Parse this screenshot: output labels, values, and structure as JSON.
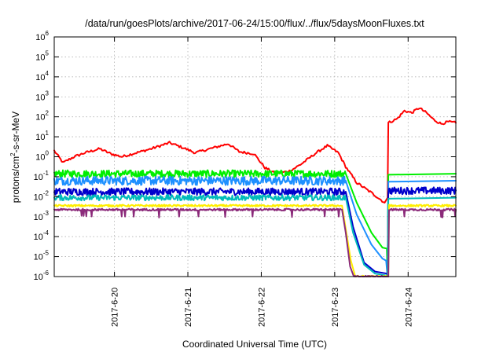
{
  "chart_data": {
    "type": "line",
    "title": "/data/run/goesPlots/archive/2017-06-24/15:00/flux/../flux/5daysMoonFluxes.txt",
    "xlabel": "Coordinated Universal Time (UTC)",
    "ylabel": {
      "pre": "protons/cm",
      "sup": "2",
      "post": "-s-sr-MeV"
    },
    "x_unit": "day of June 2017",
    "xlim": [
      19.18,
      24.65
    ],
    "ylim_log10": [
      -6,
      6
    ],
    "scale_y": "log",
    "grid": true,
    "legend": "none",
    "x_ticks": [
      {
        "x": 20,
        "label": "2017-6-20"
      },
      {
        "x": 21,
        "label": "2017-6-21"
      },
      {
        "x": 22,
        "label": "2017-6-22"
      },
      {
        "x": 23,
        "label": "2017-6-23"
      },
      {
        "x": 24,
        "label": "2017-6-24"
      }
    ],
    "y_ticks": [
      {
        "exp": -6,
        "base": "10",
        "sup": "-6"
      },
      {
        "exp": -5,
        "base": "10",
        "sup": "-5"
      },
      {
        "exp": -4,
        "base": "10",
        "sup": "-4"
      },
      {
        "exp": -3,
        "base": "10",
        "sup": "-3"
      },
      {
        "exp": -2,
        "base": "10",
        "sup": "-2"
      },
      {
        "exp": -1,
        "base": "10",
        "sup": "-1"
      },
      {
        "exp": 0,
        "base": "10",
        "sup": "0"
      },
      {
        "exp": 1,
        "base": "10",
        "sup": "1"
      },
      {
        "exp": 2,
        "base": "10",
        "sup": "2"
      },
      {
        "exp": 3,
        "base": "10",
        "sup": "3"
      },
      {
        "exp": 4,
        "base": "10",
        "sup": "4"
      },
      {
        "exp": 5,
        "base": "10",
        "sup": "5"
      },
      {
        "exp": 6,
        "base": "10",
        "sup": "6"
      }
    ],
    "series": [
      {
        "color": "#ff0000",
        "points": [
          [
            19.18,
            0.3
          ],
          [
            19.3,
            -0.3
          ],
          [
            19.45,
            0.0
          ],
          [
            19.6,
            0.2
          ],
          [
            19.8,
            0.4
          ],
          [
            19.95,
            0.15
          ],
          [
            20.1,
            0.0
          ],
          [
            20.3,
            0.2
          ],
          [
            20.5,
            0.4
          ],
          [
            20.75,
            0.7
          ],
          [
            20.9,
            0.5
          ],
          [
            21.1,
            0.2
          ],
          [
            21.3,
            0.4
          ],
          [
            21.55,
            0.65
          ],
          [
            21.7,
            0.25
          ],
          [
            21.9,
            0.15
          ],
          [
            22.05,
            -0.55
          ],
          [
            22.2,
            -0.85
          ],
          [
            22.4,
            -0.7
          ],
          [
            22.55,
            -0.35
          ],
          [
            22.75,
            0.2
          ],
          [
            22.9,
            0.55
          ],
          [
            23.05,
            0.2
          ],
          [
            23.15,
            -0.5
          ],
          [
            23.3,
            -1.3
          ],
          [
            23.5,
            -1.8
          ],
          [
            23.68,
            -2.3
          ],
          [
            23.72,
            -2.05
          ],
          [
            23.73,
            1.7
          ],
          [
            23.85,
            1.9
          ],
          [
            23.95,
            2.3
          ],
          [
            24.05,
            2.2
          ],
          [
            24.15,
            2.45
          ],
          [
            24.25,
            2.2
          ],
          [
            24.35,
            1.85
          ],
          [
            24.45,
            1.65
          ],
          [
            24.55,
            1.75
          ],
          [
            24.65,
            1.7
          ]
        ]
      },
      {
        "color": "#00ee00",
        "noise": 0.18,
        "points": [
          [
            19.18,
            -0.85
          ],
          [
            23.15,
            -0.85
          ],
          [
            23.3,
            -2.3
          ],
          [
            23.5,
            -3.8
          ],
          [
            23.65,
            -4.55
          ],
          [
            23.71,
            -4.6
          ],
          [
            23.72,
            -6
          ],
          [
            23.73,
            -0.9
          ],
          [
            24.65,
            -0.85
          ]
        ]
      },
      {
        "color": "#1e90ff",
        "noise": 0.22,
        "points": [
          [
            19.18,
            -1.2
          ],
          [
            23.15,
            -1.2
          ],
          [
            23.3,
            -2.9
          ],
          [
            23.5,
            -4.4
          ],
          [
            23.65,
            -5.1
          ],
          [
            23.7,
            -5.2
          ],
          [
            23.72,
            -6
          ],
          [
            23.73,
            -1.25
          ],
          [
            24.65,
            -1.2
          ]
        ]
      },
      {
        "color": "#0000cc",
        "noise": 0.18,
        "points": [
          [
            19.18,
            -1.75
          ],
          [
            23.15,
            -1.75
          ],
          [
            23.25,
            -3.5
          ],
          [
            23.4,
            -5.3
          ],
          [
            23.55,
            -5.75
          ],
          [
            23.71,
            -5.85
          ],
          [
            23.72,
            -6
          ],
          [
            23.73,
            -1.7
          ],
          [
            24.65,
            -1.7
          ]
        ]
      },
      {
        "color": "#00bbbb",
        "noise": 0.14,
        "points": [
          [
            19.18,
            -2.05
          ],
          [
            23.15,
            -2.05
          ],
          [
            23.25,
            -3.8
          ],
          [
            23.4,
            -5.4
          ],
          [
            23.55,
            -5.85
          ],
          [
            23.71,
            -5.95
          ],
          [
            23.72,
            -6
          ],
          [
            23.73,
            -2.1
          ],
          [
            24.65,
            -2.05
          ]
        ]
      },
      {
        "color": "#ffee00",
        "noise": 0.05,
        "points": [
          [
            19.18,
            -2.45
          ],
          [
            23.1,
            -2.45
          ],
          [
            23.15,
            -3.6
          ],
          [
            23.22,
            -5.2
          ],
          [
            23.28,
            -6
          ],
          [
            23.73,
            -6
          ],
          [
            23.74,
            -2.45
          ],
          [
            24.65,
            -2.45
          ]
        ]
      },
      {
        "color": "#8b2a7a",
        "noise": 0.05,
        "spikes": true,
        "points": [
          [
            19.18,
            -2.65
          ],
          [
            23.1,
            -2.65
          ],
          [
            23.15,
            -3.8
          ],
          [
            23.21,
            -5.5
          ],
          [
            23.26,
            -6
          ],
          [
            23.73,
            -6
          ],
          [
            23.74,
            -2.65
          ],
          [
            24.65,
            -2.65
          ]
        ]
      }
    ]
  }
}
